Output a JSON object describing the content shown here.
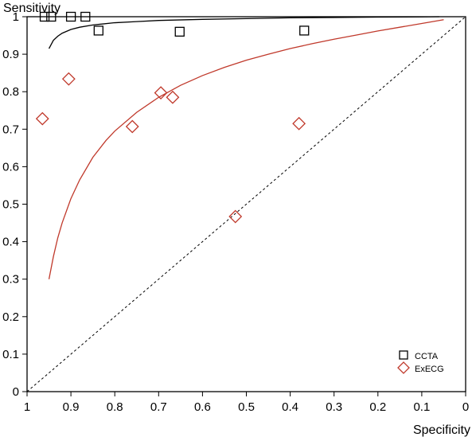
{
  "chart_data": {
    "type": "scatter",
    "title": "",
    "xlabel": "Specificity",
    "ylabel": "Sensitivity",
    "xlim": [
      1,
      0
    ],
    "ylim": [
      0,
      1
    ],
    "x_ticks": [
      "1",
      "0.9",
      "0.8",
      "0.7",
      "0.6",
      "0.5",
      "0.4",
      "0.3",
      "0.2",
      "0.1",
      "0"
    ],
    "y_ticks": [
      "0",
      "0.1",
      "0.2",
      "0.3",
      "0.4",
      "0.5",
      "0.6",
      "0.7",
      "0.8",
      "0.9",
      "1"
    ],
    "x_reversed": true,
    "grid": false,
    "legend_position": "bottom-right",
    "diagonal_reference_line": true,
    "series": [
      {
        "name": "CCTA",
        "marker": "square",
        "color": "#000000",
        "points": [
          {
            "x": 0.96,
            "y": 1.0
          },
          {
            "x": 0.945,
            "y": 1.0
          },
          {
            "x": 0.9,
            "y": 1.0
          },
          {
            "x": 0.867,
            "y": 1.0
          },
          {
            "x": 0.837,
            "y": 0.963
          },
          {
            "x": 0.652,
            "y": 0.96
          },
          {
            "x": 0.368,
            "y": 0.963
          }
        ]
      },
      {
        "name": "ExECG",
        "marker": "diamond",
        "color": "#c0392b",
        "points": [
          {
            "x": 0.965,
            "y": 0.728
          },
          {
            "x": 0.905,
            "y": 0.834
          },
          {
            "x": 0.76,
            "y": 0.707
          },
          {
            "x": 0.695,
            "y": 0.797
          },
          {
            "x": 0.668,
            "y": 0.785
          },
          {
            "x": 0.525,
            "y": 0.467
          },
          {
            "x": 0.38,
            "y": 0.715
          }
        ]
      }
    ],
    "sroc_curves": [
      {
        "series": "CCTA",
        "color": "#000000",
        "x": [
          0.95,
          0.94,
          0.93,
          0.92,
          0.9,
          0.88,
          0.85,
          0.8,
          0.75,
          0.7,
          0.6,
          0.5,
          0.4,
          0.3,
          0.2,
          0.1,
          0.06
        ],
        "y": [
          0.915,
          0.937,
          0.948,
          0.956,
          0.966,
          0.972,
          0.978,
          0.984,
          0.987,
          0.99,
          0.993,
          0.995,
          0.997,
          0.998,
          0.999,
          0.9995,
          1.0
        ]
      },
      {
        "series": "ExECG",
        "color": "#c0392b",
        "x": [
          0.95,
          0.94,
          0.93,
          0.92,
          0.9,
          0.88,
          0.85,
          0.82,
          0.8,
          0.75,
          0.7,
          0.65,
          0.6,
          0.55,
          0.5,
          0.45,
          0.4,
          0.35,
          0.3,
          0.25,
          0.2,
          0.15,
          0.1,
          0.05
        ],
        "y": [
          0.3,
          0.36,
          0.41,
          0.45,
          0.515,
          0.565,
          0.625,
          0.67,
          0.695,
          0.745,
          0.785,
          0.817,
          0.843,
          0.865,
          0.884,
          0.9,
          0.915,
          0.928,
          0.94,
          0.951,
          0.962,
          0.972,
          0.982,
          0.992
        ]
      }
    ]
  }
}
